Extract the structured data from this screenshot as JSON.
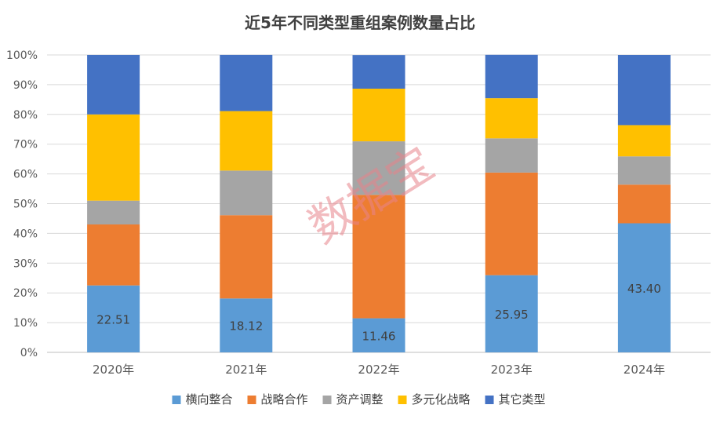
{
  "chart_data": {
    "type": "bar",
    "stacked": true,
    "title": "近5年不同类型重组案例数量占比",
    "categories": [
      "2020年",
      "2021年",
      "2022年",
      "2023年",
      "2024年"
    ],
    "yticks": [
      "0%",
      "10%",
      "20%",
      "30%",
      "40%",
      "50%",
      "60%",
      "70%",
      "80%",
      "90%",
      "100%"
    ],
    "ylim": [
      0,
      100
    ],
    "grid": true,
    "legend_position": "bottom",
    "series": [
      {
        "name": "横向整合",
        "color": "#5B9BD5",
        "values": [
          22.51,
          18.12,
          11.46,
          25.95,
          43.4
        ],
        "labels": [
          "22.51",
          "18.12",
          "11.46",
          "25.95",
          "43.40"
        ]
      },
      {
        "name": "战略合作",
        "color": "#ED7D31",
        "values": [
          20.5,
          28.0,
          41.5,
          34.5,
          13.0
        ]
      },
      {
        "name": "资产调整",
        "color": "#A5A5A5",
        "values": [
          8.0,
          15.0,
          18.0,
          11.5,
          9.5
        ]
      },
      {
        "name": "多元化战略",
        "color": "#FFC000",
        "values": [
          29.0,
          20.0,
          17.7,
          13.5,
          10.5
        ]
      },
      {
        "name": "其它类型",
        "color": "#4472C4",
        "values": [
          20.0,
          18.9,
          11.3,
          14.6,
          23.6
        ]
      }
    ]
  },
  "watermark": "数据宝"
}
